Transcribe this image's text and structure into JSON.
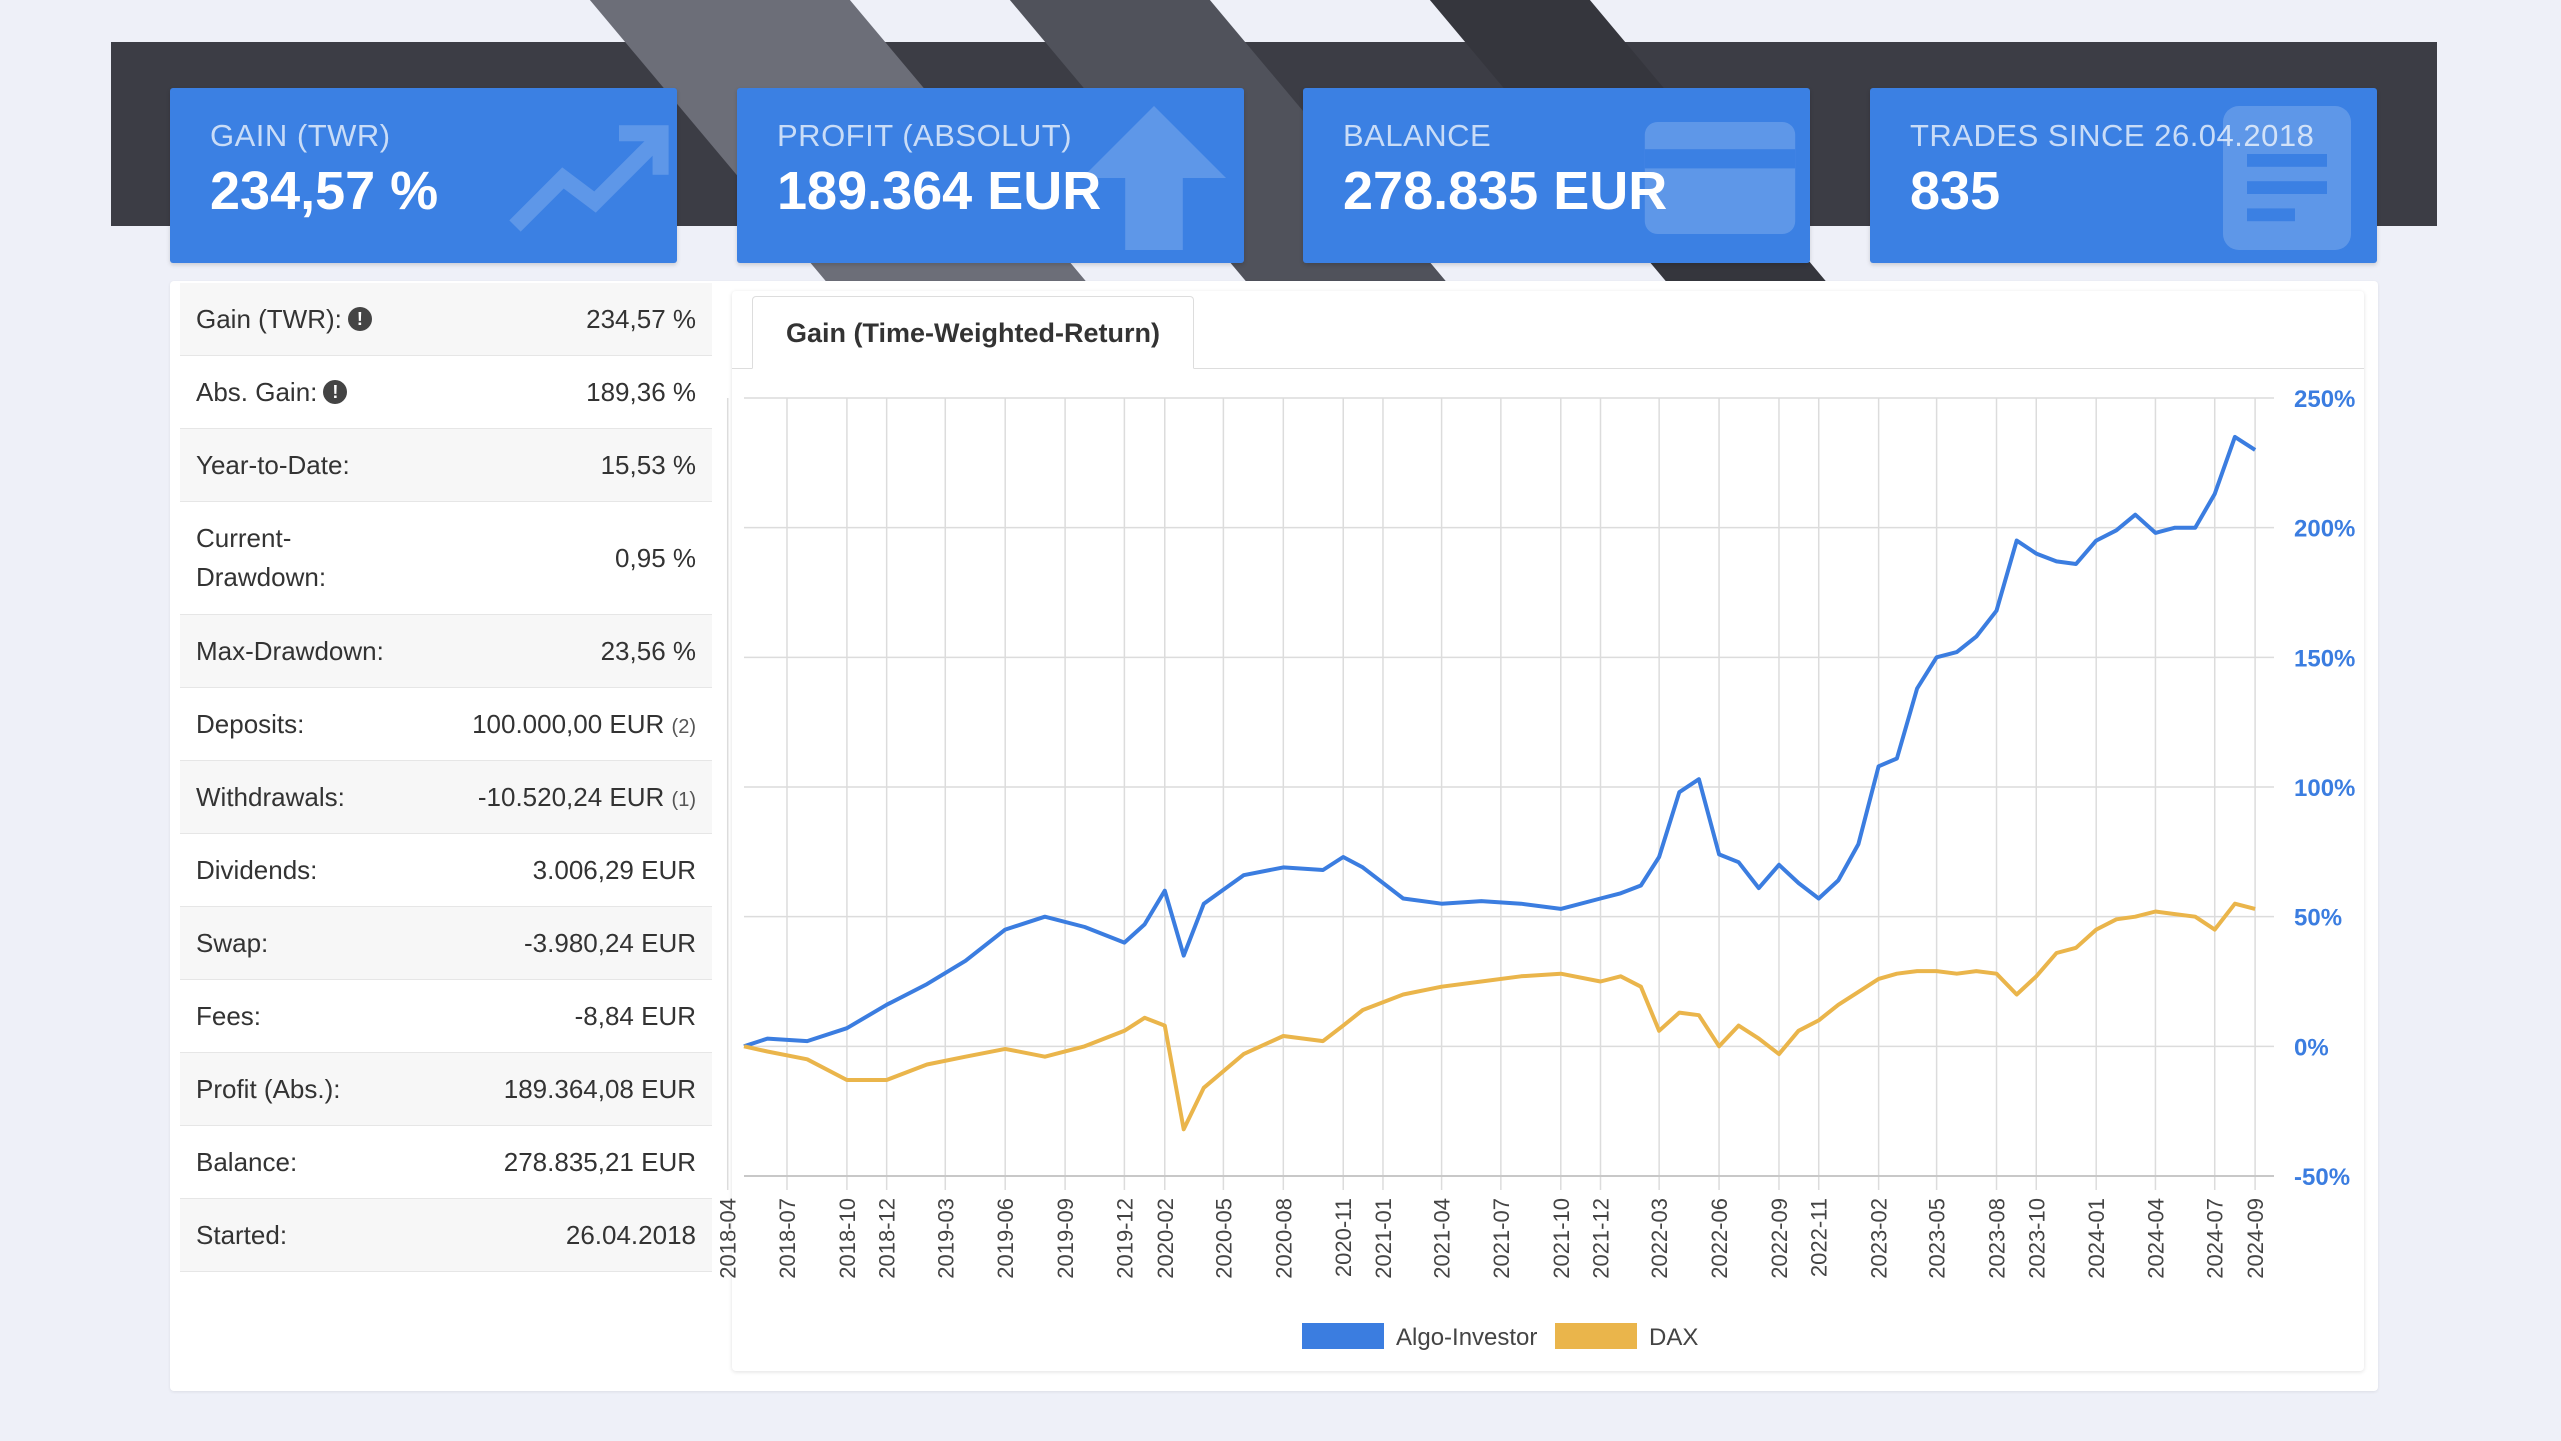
{
  "cards": [
    {
      "label": "GAIN (TWR)",
      "value": "234,57 %",
      "icon": "trend-icon"
    },
    {
      "label": "PROFIT (ABSOLUT)",
      "value": "189.364 EUR",
      "icon": "arrow-up-icon"
    },
    {
      "label": "BALANCE",
      "value": "278.835 EUR",
      "icon": "credit-card-icon"
    },
    {
      "label": "TRADES SINCE 26.04.2018",
      "value": "835",
      "icon": "document-icon"
    }
  ],
  "stats": [
    {
      "label": "Gain (TWR):",
      "value": "234,57 %",
      "info": true
    },
    {
      "label": "Abs. Gain:",
      "value": "189,36 %",
      "info": true
    },
    {
      "label": "Year-to-Date:",
      "value": "15,53 %"
    },
    {
      "label": "Current-Drawdown:",
      "value": "0,95 %"
    },
    {
      "label": "Max-Drawdown:",
      "value": "23,56 %"
    },
    {
      "label": "Deposits:",
      "value": "100.000,00 EUR",
      "note": "(2)"
    },
    {
      "label": "Withdrawals:",
      "value": "-10.520,24 EUR",
      "note": "(1)"
    },
    {
      "label": "Dividends:",
      "value": "3.006,29 EUR"
    },
    {
      "label": "Swap:",
      "value": "-3.980,24 EUR"
    },
    {
      "label": "Fees:",
      "value": "-8,84 EUR"
    },
    {
      "label": "Profit (Abs.):",
      "value": "189.364,08 EUR"
    },
    {
      "label": "Balance:",
      "value": "278.835,21 EUR"
    },
    {
      "label": "Started:",
      "value": "26.04.2018"
    }
  ],
  "tab_label": "Gain (Time-Weighted-Return)",
  "colors": {
    "accent": "#3b80e3",
    "algo": "#3b7de0",
    "dax": "#eab54b",
    "axis_label": "#3b7de0"
  },
  "chart_data": {
    "type": "line",
    "title": "",
    "xlabel": "",
    "ylabel": "",
    "ylim": [
      -50,
      250
    ],
    "y_ticks": [
      "-50%",
      "0%",
      "50%",
      "100%",
      "150%",
      "200%",
      "250%"
    ],
    "y_tick_values": [
      -50,
      0,
      50,
      100,
      150,
      200,
      250
    ],
    "y_axis_side": "right",
    "x_ticks": [
      "2018-04",
      "2018-07",
      "2018-10",
      "2018-12",
      "2019-03",
      "2019-06",
      "2019-09",
      "2019-12",
      "2020-02",
      "2020-05",
      "2020-08",
      "2020-11",
      "2021-01",
      "2021-04",
      "2021-07",
      "2021-10",
      "2021-12",
      "2022-03",
      "2022-06",
      "2022-09",
      "2022-11",
      "2023-02",
      "2023-05",
      "2023-08",
      "2023-10",
      "2024-01",
      "2024-04",
      "2024-07",
      "2024-09"
    ],
    "x": [
      "2018-04-26",
      "2018-06",
      "2018-08",
      "2018-10",
      "2018-12",
      "2019-02",
      "2019-04",
      "2019-06",
      "2019-08",
      "2019-10",
      "2019-12",
      "2020-01",
      "2020-02",
      "2020-03",
      "2020-04",
      "2020-06",
      "2020-08",
      "2020-10",
      "2020-11",
      "2020-12",
      "2021-02",
      "2021-04",
      "2021-06",
      "2021-08",
      "2021-10",
      "2021-12",
      "2022-01",
      "2022-02",
      "2022-03",
      "2022-04",
      "2022-05",
      "2022-06",
      "2022-07",
      "2022-08",
      "2022-09",
      "2022-10",
      "2022-11",
      "2022-12",
      "2023-01",
      "2023-02",
      "2023-03",
      "2023-04",
      "2023-05",
      "2023-06",
      "2023-07",
      "2023-08",
      "2023-09",
      "2023-10",
      "2023-11",
      "2023-12",
      "2024-01",
      "2024-02",
      "2024-03",
      "2024-04",
      "2024-05",
      "2024-06",
      "2024-07",
      "2024-08",
      "2024-09"
    ],
    "series": [
      {
        "name": "Algo-Investor",
        "values": [
          0,
          3,
          2,
          7,
          16,
          24,
          33,
          45,
          50,
          46,
          40,
          47,
          60,
          35,
          55,
          66,
          69,
          68,
          73,
          69,
          57,
          55,
          56,
          55,
          53,
          57,
          59,
          62,
          73,
          98,
          103,
          74,
          71,
          61,
          70,
          63,
          57,
          64,
          78,
          108,
          111,
          138,
          150,
          152,
          158,
          168,
          195,
          190,
          187,
          186,
          195,
          199,
          205,
          198,
          200,
          200,
          213,
          235,
          230
        ]
      },
      {
        "name": "DAX",
        "values": [
          0,
          -2,
          -5,
          -13,
          -13,
          -7,
          -4,
          -1,
          -4,
          0,
          6,
          11,
          8,
          -32,
          -16,
          -3,
          4,
          2,
          8,
          14,
          20,
          23,
          25,
          27,
          28,
          25,
          27,
          23,
          6,
          13,
          12,
          0,
          8,
          3,
          -3,
          6,
          10,
          16,
          21,
          26,
          28,
          29,
          29,
          28,
          29,
          28,
          20,
          27,
          36,
          38,
          45,
          49,
          50,
          52,
          51,
          50,
          45,
          55,
          53
        ]
      }
    ]
  }
}
